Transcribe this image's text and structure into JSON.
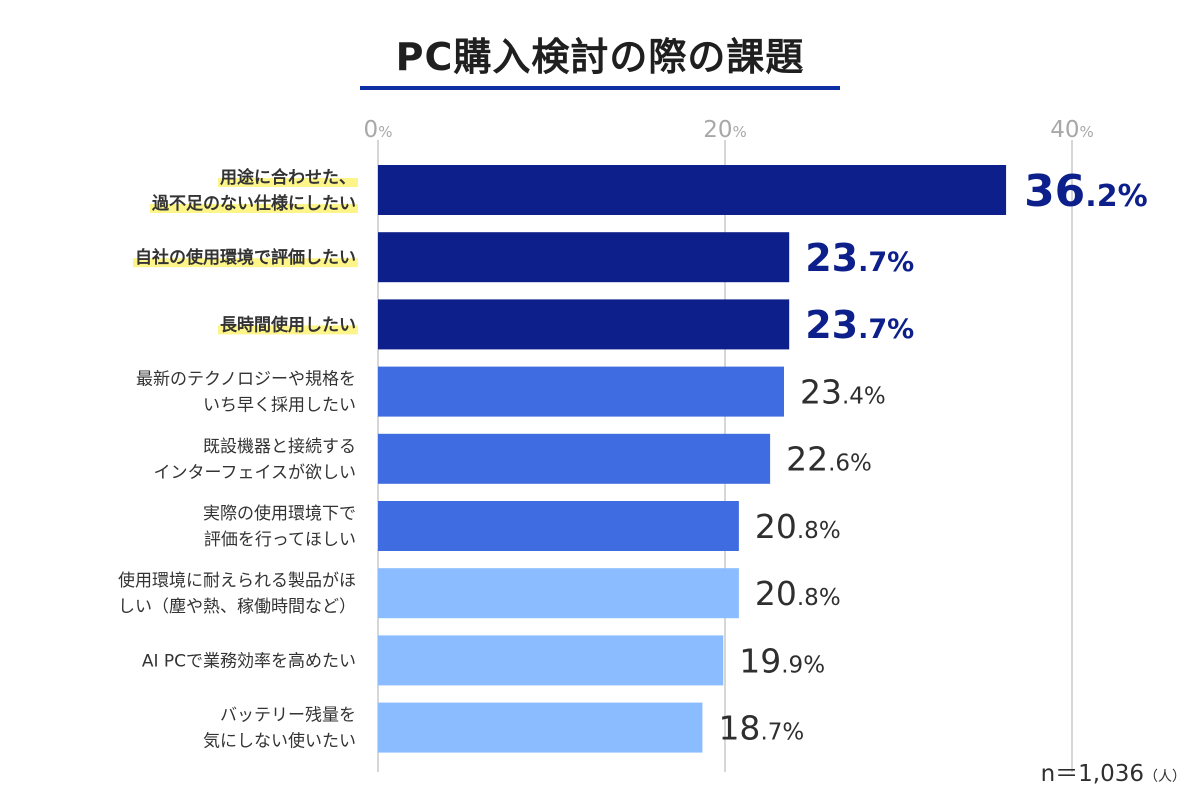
{
  "title": "PC購入検討の際の課題",
  "sample_note": {
    "main": "n＝1,036",
    "unit": "（人）"
  },
  "chart_data": {
    "type": "bar",
    "orientation": "horizontal",
    "title": "PC購入検討の際の課題",
    "xlim": [
      0,
      40
    ],
    "ticks": [
      {
        "value": 0,
        "num": "0",
        "pct": "%"
      },
      {
        "value": 20,
        "num": "20",
        "pct": "%"
      },
      {
        "value": 40,
        "num": "40",
        "pct": "%"
      }
    ],
    "grid": true,
    "categories": [
      "用途に合わせた、過不足のない仕様にしたい",
      "自社の使用環境で評価したい",
      "長時間使用したい",
      "最新のテクノロジーや規格をいち早く採用したい",
      "既設機器と接続するインターフェイスが欲しい",
      "実際の使用環境下で評価を行ってほしい",
      "使用環境に耐えられる製品がほしい（塵や熱、稼働時間など）",
      "AI PCで業務効率を高めたい",
      "バッテリー残量を気にしない使いたい"
    ],
    "label_lines": [
      [
        "用途に合わせた、",
        "過不足のない仕様にしたい"
      ],
      [
        "自社の使用環境で評価したい"
      ],
      [
        "長時間使用したい"
      ],
      [
        "最新のテクノロジーや規格を",
        "いち早く採用したい"
      ],
      [
        "既設機器と接続する",
        "インターフェイスが欲しい"
      ],
      [
        "実際の使用環境下で",
        "評価を行ってほしい"
      ],
      [
        "使用環境に耐えられる製品がほ",
        "しい（塵や熱、稼働時間など）"
      ],
      [
        "AI PCで業務効率を高めたい"
      ],
      [
        "バッテリー残量を",
        "気にしない使いたい"
      ]
    ],
    "values": [
      36.2,
      23.7,
      23.7,
      23.4,
      22.6,
      20.8,
      20.8,
      19.9,
      18.7
    ],
    "value_labels": [
      {
        "int": "36",
        "dec": ".2",
        "pct": "%"
      },
      {
        "int": "23",
        "dec": ".7",
        "pct": "%"
      },
      {
        "int": "23",
        "dec": ".7",
        "pct": "%"
      },
      {
        "int": "23",
        "dec": ".4",
        "pct": "%"
      },
      {
        "int": "22",
        "dec": ".6",
        "pct": "%"
      },
      {
        "int": "20",
        "dec": ".8",
        "pct": "%"
      },
      {
        "int": "20",
        "dec": ".8",
        "pct": "%"
      },
      {
        "int": "19",
        "dec": ".9",
        "pct": "%"
      },
      {
        "int": "18",
        "dec": ".7",
        "pct": "%"
      }
    ],
    "highlighted": [
      true,
      true,
      true,
      false,
      false,
      false,
      false,
      false,
      false
    ],
    "tiers": [
      "dark",
      "dark",
      "dark",
      "mid",
      "mid",
      "mid",
      "light",
      "light",
      "light"
    ],
    "colors": {
      "dark": "#0d1f8a",
      "mid": "#3f6ce0",
      "light": "#8bbcff",
      "highlight": "#fdf58a",
      "grid": "#c8c8c8",
      "tick_text": "#a8a8a8",
      "label_text": "#333333",
      "value_text_dark": "#0d1f8a",
      "value_text_normal": "#2f2f2f"
    }
  }
}
